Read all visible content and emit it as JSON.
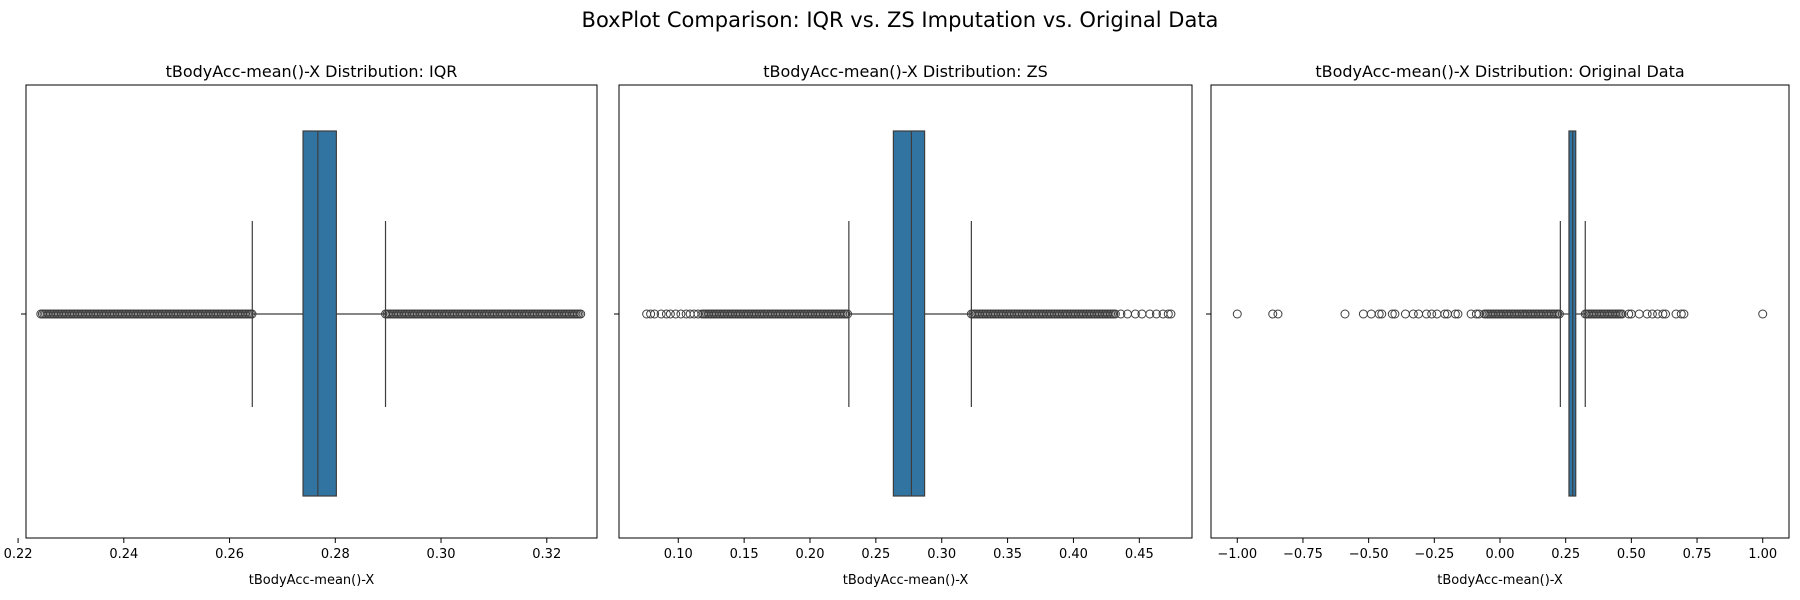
{
  "figure": {
    "title": "BoxPlot Comparison: IQR vs. ZS Imputation vs. Original Data"
  },
  "colors": {
    "box_fill": "#3274a1",
    "line": "#3d3d3d",
    "axes": "#000000"
  },
  "chart_data": [
    {
      "type": "box",
      "title": "tBodyAcc-mean()-X Distribution: IQR",
      "xlabel": "tBodyAcc-mean()-X",
      "ylabel": "",
      "xlim": [
        0.2215,
        0.3295
      ],
      "xticks": [
        0.22,
        0.24,
        0.26,
        0.28,
        0.3,
        0.32
      ],
      "xtick_labels": [
        "0.22",
        "0.24",
        "0.26",
        "0.28",
        "0.30",
        "0.32"
      ],
      "grid": false,
      "box": {
        "whisker_low": 0.2643,
        "q1": 0.2739,
        "median": 0.2767,
        "q3": 0.2802,
        "whisker_high": 0.2895
      },
      "outliers": {
        "dense_ranges": [
          [
            0.2243,
            0.2643
          ],
          [
            0.2895,
            0.3265
          ]
        ],
        "points": []
      }
    },
    {
      "type": "box",
      "title": "tBodyAcc-mean()-X Distribution: ZS",
      "xlabel": "tBodyAcc-mean()-X",
      "ylabel": "",
      "xlim": [
        0.055,
        0.49
      ],
      "xticks": [
        0.1,
        0.15,
        0.2,
        0.25,
        0.3,
        0.35,
        0.4,
        0.45
      ],
      "xtick_labels": [
        "0.10",
        "0.15",
        "0.20",
        "0.25",
        "0.30",
        "0.35",
        "0.40",
        "0.45"
      ],
      "grid": false,
      "box": {
        "whisker_low": 0.2295,
        "q1": 0.2633,
        "median": 0.277,
        "q3": 0.287,
        "whisker_high": 0.3225
      },
      "outliers": {
        "dense_ranges": [
          [
            0.118,
            0.2295
          ],
          [
            0.3225,
            0.432
          ]
        ],
        "points": [
          0.076,
          0.079,
          0.082,
          0.087,
          0.091,
          0.094,
          0.098,
          0.102,
          0.106,
          0.109,
          0.112,
          0.115,
          0.436,
          0.441,
          0.447,
          0.452,
          0.458,
          0.463,
          0.468,
          0.472,
          0.474
        ]
      }
    },
    {
      "type": "box",
      "title": "tBodyAcc-mean()-X Distribution: Original Data",
      "xlabel": "tBodyAcc-mean()-X",
      "ylabel": "",
      "xlim": [
        -1.1,
        1.1
      ],
      "xticks": [
        -1.0,
        -0.75,
        -0.5,
        -0.25,
        0.0,
        0.25,
        0.5,
        0.75,
        1.0
      ],
      "xtick_labels": [
        "−1.00",
        "−0.75",
        "−0.50",
        "−0.25",
        "0.00",
        "0.25",
        "0.50",
        "0.75",
        "1.00"
      ],
      "grid": false,
      "box": {
        "whisker_low": 0.2297,
        "q1": 0.2625,
        "median": 0.277,
        "q3": 0.2883,
        "whisker_high": 0.3245
      },
      "outliers": {
        "dense_ranges": [
          [
            -0.06,
            0.2297
          ],
          [
            0.3245,
            0.47
          ]
        ],
        "points": [
          -1.0,
          -0.865,
          -0.845,
          -0.59,
          -0.52,
          -0.49,
          -0.46,
          -0.45,
          -0.41,
          -0.4,
          -0.36,
          -0.33,
          -0.31,
          -0.28,
          -0.26,
          -0.24,
          -0.21,
          -0.2,
          -0.17,
          -0.16,
          -0.11,
          -0.09,
          -0.08,
          0.49,
          0.5,
          0.53,
          0.56,
          0.58,
          0.6,
          0.62,
          0.63,
          0.67,
          0.69,
          0.7,
          1.0
        ]
      }
    }
  ]
}
